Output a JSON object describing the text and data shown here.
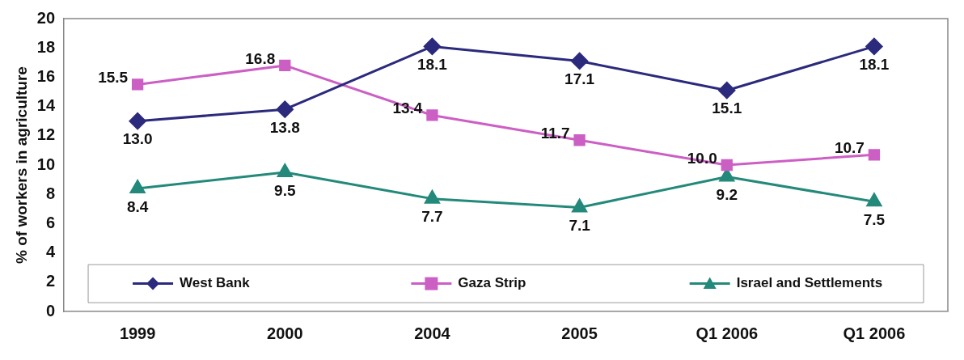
{
  "chart_data": {
    "type": "line",
    "ylabel": "% of workers in agriculture",
    "categories": [
      "1999",
      "2000",
      "2004",
      "2005",
      "Q1 2006",
      "Q1 2006"
    ],
    "series": [
      {
        "name": "West Bank",
        "color": "#2b2a7c",
        "marker": "diamond",
        "values": [
          13.0,
          13.8,
          18.1,
          17.1,
          15.1,
          18.1
        ],
        "value_labels": [
          "13.0",
          "13.8",
          "18.1",
          "17.1",
          "15.1",
          "18.1"
        ]
      },
      {
        "name": "Gaza Strip",
        "color": "#cc5fc4",
        "marker": "square",
        "values": [
          15.5,
          16.8,
          13.4,
          11.7,
          10.0,
          10.7
        ],
        "value_labels": [
          "15.5",
          "16.8",
          "13.4",
          "11.7",
          "10.0",
          "10.7"
        ]
      },
      {
        "name": "Israel and Settlements",
        "color": "#23897a",
        "marker": "triangle",
        "values": [
          8.4,
          9.5,
          7.7,
          7.1,
          9.2,
          7.5
        ],
        "value_labels": [
          "8.4",
          "9.5",
          "7.7",
          "7.1",
          "9.2",
          "7.5"
        ]
      }
    ],
    "ylim": [
      0,
      20
    ],
    "yticks": [
      0,
      2,
      4,
      6,
      8,
      10,
      12,
      14,
      16,
      18,
      20
    ],
    "grid": false,
    "legend": "bottom"
  }
}
